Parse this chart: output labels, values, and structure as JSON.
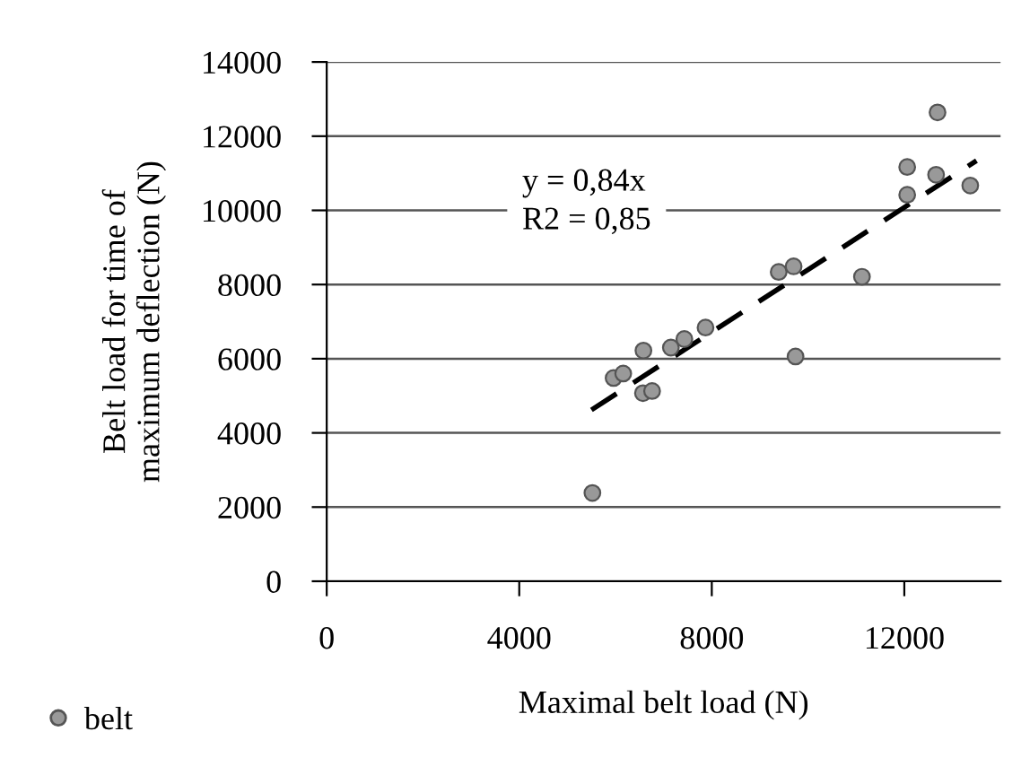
{
  "chart_data": {
    "type": "scatter",
    "xlabel": "Maximal belt load (N)",
    "ylabel": "Belt load for time of\nmaximum deflection (N)",
    "xlim": [
      0,
      14000
    ],
    "xticks": [
      0,
      4000,
      8000,
      12000
    ],
    "ylim": [
      0,
      14000
    ],
    "yticks": [
      0,
      2000,
      4000,
      6000,
      8000,
      10000,
      12000,
      14000
    ],
    "grid": "y",
    "legend": "bottom left",
    "marker": "circle",
    "annotations": [
      "y = 0,84x",
      "R2 = 0,85"
    ],
    "series": [
      {
        "name": "belt",
        "color": "#999999",
        "x": [
          5520,
          5960,
          6160,
          6580,
          6570,
          6760,
          7150,
          7430,
          7870,
          9390,
          9700,
          9740,
          11120,
          12060,
          12060,
          12690,
          12660,
          13370
        ],
        "values": [
          2380,
          5480,
          5600,
          6220,
          5070,
          5130,
          6300,
          6530,
          6840,
          8340,
          8490,
          6060,
          8210,
          11170,
          10420,
          12640,
          10960,
          10670
        ]
      },
      {
        "type": "line",
        "color": "#000000",
        "line_style": "dashed",
        "marker": "none",
        "x": [
          5500,
          13500
        ],
        "values": [
          4620,
          11340
        ]
      }
    ]
  }
}
